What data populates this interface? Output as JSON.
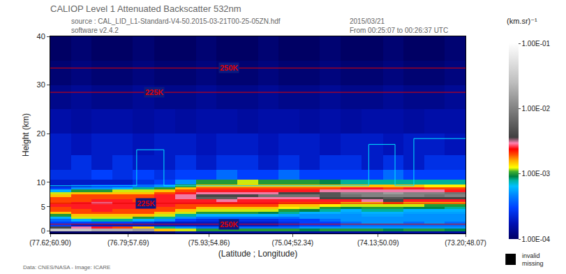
{
  "chart_data": {
    "type": "heatmap",
    "title": "CALIOP Level 1 Attenuated Backscatter 532nm",
    "source": "source : CAL_LID_L1-Standard-V4-50.2015-03-21T00-25-05ZN.hdf",
    "software": "software v2.4.2",
    "date": "2015/03/21",
    "time_span": "From 00:25:07 to 00:26:37 UTC",
    "credit": "Data: CNES/NASA - Image: ICARE",
    "xlabel": "(Latitude ; Longitude)",
    "ylabel": "Height (km)",
    "xlim": [
      77.62,
      73.2
    ],
    "xticks": [
      {
        "value": 77.62,
        "label": "(77.62;60.90)"
      },
      {
        "value": 76.79,
        "label": "(76.79;57.69)"
      },
      {
        "value": 75.93,
        "label": "(75.93;54.86)"
      },
      {
        "value": 75.04,
        "label": "(75.04;52.34)"
      },
      {
        "value": 74.13,
        "label": "(74.13;50.09)"
      },
      {
        "value": 73.2,
        "label": "(73.20;48.07)"
      }
    ],
    "ylim": [
      -0.5,
      40
    ],
    "yticks": [
      0,
      5,
      10,
      20,
      30,
      40
    ],
    "grid": false,
    "colorbar": {
      "title": "(km.sr)⁻¹",
      "log": true,
      "range": [
        0.0001,
        0.1
      ],
      "ticks": [
        {
          "value": 0.0001,
          "label": "1.00E-04"
        },
        {
          "value": 0.001,
          "label": "1.00E-03"
        },
        {
          "value": 0.01,
          "label": "1.00E-02"
        },
        {
          "value": 0.1,
          "label": "1.00E-01"
        }
      ]
    },
    "invalid_key": {
      "texts": [
        "invalid",
        "missing"
      ],
      "color": "#000000"
    },
    "cells": {
      "x": [
        77.51,
        77.29,
        77.07,
        76.85,
        76.63,
        76.4,
        76.18,
        75.96,
        75.74,
        75.52,
        75.3,
        75.08,
        74.86,
        74.64,
        74.42,
        74.19,
        73.97,
        73.75,
        73.53,
        73.31
      ],
      "y": [
        -0.25,
        0.25,
        0.75,
        1.25,
        1.75,
        2.25,
        2.75,
        3.25,
        3.75,
        4.25,
        4.75,
        5.25,
        5.75,
        6.25,
        6.75,
        7.25,
        7.75,
        8.25,
        8.75,
        9.25,
        9.75,
        11.25,
        13.75,
        17.5,
        22.5,
        27.5,
        32.5,
        37.5
      ],
      "z": [
        [
          0.0001,
          0.0001,
          0.0001,
          0.0001,
          0.0001,
          0.00012,
          0.00015,
          0.00015,
          0.00015,
          0.00015,
          0.00015,
          0.00015,
          0.00015,
          0.00015,
          0.00015,
          0.00015,
          0.00015,
          0.00015,
          0.00015,
          0.00015
        ],
        [
          0.03,
          0.03,
          0.02,
          0.02,
          0.015,
          0.0015,
          0.0012,
          0.001,
          0.001,
          0.001,
          0.001,
          0.001,
          0.0009,
          0.001,
          0.001,
          0.001,
          0.0009,
          0.001,
          0.001,
          0.0009
        ],
        [
          0.004,
          0.003,
          0.0025,
          0.002,
          0.0015,
          0.0008,
          0.0005,
          0.0004,
          0.0004,
          0.0004,
          0.0004,
          0.0004,
          0.0005,
          0.0005,
          0.0005,
          0.0005,
          0.0005,
          0.0005,
          0.0005,
          0.0005
        ],
        [
          0.0003,
          0.0002,
          0.0002,
          0.0002,
          0.0002,
          0.0002,
          0.0002,
          0.0002,
          0.0002,
          0.0002,
          0.0002,
          0.00025,
          0.0003,
          0.0003,
          0.0004,
          0.0004,
          0.0004,
          0.0004,
          0.0004,
          0.0004
        ],
        [
          0.0003,
          0.0003,
          0.0003,
          0.0003,
          0.00025,
          0.0002,
          0.0002,
          0.0002,
          0.0002,
          0.0002,
          0.0002,
          0.00025,
          0.0003,
          0.0003,
          0.0004,
          0.0005,
          0.0005,
          0.0004,
          0.0005,
          0.0004
        ],
        [
          0.0004,
          0.0006,
          0.0008,
          0.0008,
          0.0006,
          0.0005,
          0.0003,
          0.00025,
          0.00025,
          0.00025,
          0.00025,
          0.0003,
          0.0003,
          0.0004,
          0.0005,
          0.0005,
          0.0005,
          0.0005,
          0.0005,
          0.0005
        ],
        [
          0.0006,
          0.0012,
          0.0012,
          0.0012,
          0.001,
          0.0008,
          0.0005,
          0.0004,
          0.0004,
          0.0004,
          0.0004,
          0.0004,
          0.0005,
          0.0005,
          0.0005,
          0.0005,
          0.0005,
          0.0005,
          0.0005,
          0.0005
        ],
        [
          0.001,
          0.0015,
          0.0015,
          0.0015,
          0.0015,
          0.0012,
          0.0008,
          0.0006,
          0.0006,
          0.0006,
          0.0006,
          0.00055,
          0.0005,
          0.0005,
          0.0005,
          0.00055,
          0.00055,
          0.0005,
          0.0005,
          0.0005
        ],
        [
          0.0015,
          0.002,
          0.002,
          0.002,
          0.002,
          0.0015,
          0.0012,
          0.001,
          0.001,
          0.001,
          0.0009,
          0.0008,
          0.0006,
          0.0006,
          0.00055,
          0.0006,
          0.0006,
          0.00055,
          0.00055,
          0.00055
        ],
        [
          0.002,
          0.002,
          0.0025,
          0.002,
          0.002,
          0.002,
          0.0015,
          0.0012,
          0.0012,
          0.0012,
          0.0012,
          0.001,
          0.0009,
          0.0008,
          0.0006,
          0.0008,
          0.0008,
          0.0006,
          0.0006,
          0.0006
        ],
        [
          0.002,
          0.0025,
          0.0025,
          0.0025,
          0.0025,
          0.002,
          0.002,
          0.0015,
          0.0015,
          0.0015,
          0.0015,
          0.0013,
          0.0012,
          0.001,
          0.0009,
          0.001,
          0.001,
          0.0009,
          0.0009,
          0.0008
        ],
        [
          0.0025,
          0.0025,
          0.0025,
          0.0025,
          0.0025,
          0.0025,
          0.002,
          0.002,
          0.002,
          0.002,
          0.002,
          0.0015,
          0.0015,
          0.0013,
          0.0012,
          0.0012,
          0.0012,
          0.0012,
          0.001,
          0.001
        ],
        [
          0.002,
          0.0025,
          0.003,
          0.0025,
          0.0025,
          0.0025,
          0.0025,
          0.0025,
          0.0025,
          0.0025,
          0.0025,
          0.002,
          0.002,
          0.002,
          0.0015,
          0.0015,
          0.002,
          0.0015,
          0.0015,
          0.0015
        ],
        [
          0.002,
          0.002,
          0.0025,
          0.0025,
          0.002,
          0.0025,
          0.0025,
          0.0025,
          0.003,
          0.0025,
          0.0025,
          0.0025,
          0.0025,
          0.0025,
          0.0025,
          0.003,
          0.004,
          0.0025,
          0.0025,
          0.0025
        ],
        [
          0.002,
          0.002,
          0.002,
          0.002,
          0.002,
          0.0025,
          0.003,
          0.006,
          0.006,
          0.003,
          0.003,
          0.003,
          0.003,
          0.004,
          0.004,
          0.004,
          0.005,
          0.004,
          0.004,
          0.004
        ],
        [
          0.0015,
          0.002,
          0.002,
          0.002,
          0.002,
          0.0025,
          0.003,
          0.004,
          0.004,
          0.004,
          0.008,
          0.008,
          0.008,
          0.005,
          0.008,
          0.01,
          0.01,
          0.01,
          0.008,
          0.01
        ],
        [
          0.0012,
          0.0015,
          0.0015,
          0.0015,
          0.0015,
          0.002,
          0.0025,
          0.003,
          0.003,
          0.003,
          0.003,
          0.004,
          0.004,
          0.005,
          0.01,
          0.01,
          0.015,
          0.01,
          0.01,
          0.008
        ],
        [
          0.0006,
          0.001,
          0.001,
          0.0012,
          0.0012,
          0.0015,
          0.002,
          0.0025,
          0.0025,
          0.0025,
          0.0025,
          0.0025,
          0.0025,
          0.003,
          0.003,
          0.003,
          0.003,
          0.003,
          0.003,
          0.0025
        ],
        [
          0.0003,
          0.0005,
          0.0005,
          0.0006,
          0.0008,
          0.001,
          0.0015,
          0.002,
          0.002,
          0.002,
          0.002,
          0.002,
          0.002,
          0.002,
          0.0025,
          0.0025,
          0.002,
          0.0025,
          0.002,
          0.002
        ],
        [
          0.0002,
          0.00025,
          0.0003,
          0.0003,
          0.0004,
          0.0005,
          0.001,
          0.0015,
          0.0015,
          0.0015,
          0.0015,
          0.0015,
          0.0015,
          0.0015,
          0.0015,
          0.0015,
          0.0015,
          0.0015,
          0.0013,
          0.0013
        ],
        [
          0.0002,
          0.0002,
          0.0002,
          0.0002,
          0.00025,
          0.0003,
          0.0005,
          0.001,
          0.001,
          0.0012,
          0.001,
          0.001,
          0.001,
          0.0009,
          0.0008,
          0.0008,
          0.0008,
          0.0008,
          0.0008,
          0.0008
        ],
        [
          0.00025,
          0.00025,
          0.0003,
          0.00025,
          0.0003,
          0.00025,
          0.0003,
          0.0003,
          0.0004,
          0.0003,
          0.0003,
          0.0004,
          0.0003,
          0.0003,
          0.0003,
          0.0003,
          0.0004,
          0.0003,
          0.0003,
          0.0003
        ],
        [
          0.0002,
          0.00025,
          0.0002,
          0.00025,
          0.0002,
          0.0002,
          0.00025,
          0.0002,
          0.00025,
          0.00025,
          0.0002,
          0.00025,
          0.0002,
          0.00025,
          0.00025,
          0.0002,
          0.00025,
          0.0002,
          0.00025,
          0.00025
        ],
        [
          0.0002,
          0.00018,
          0.0002,
          0.0002,
          0.00018,
          0.0002,
          0.0002,
          0.00018,
          0.0002,
          0.0002,
          0.00018,
          0.0002,
          0.0002,
          0.00018,
          0.0002,
          0.0002,
          0.00018,
          0.0002,
          0.0002,
          0.00018
        ],
        [
          0.00016,
          0.00015,
          0.00016,
          0.00016,
          0.00015,
          0.00016,
          0.00015,
          0.00016,
          0.00016,
          0.00015,
          0.00016,
          0.00016,
          0.00015,
          0.00016,
          0.00015,
          0.00016,
          0.00016,
          0.00015,
          0.00016,
          0.00016
        ],
        [
          0.00013,
          0.00014,
          0.00013,
          0.00013,
          0.00014,
          0.00013,
          0.00013,
          0.00014,
          0.00013,
          0.00013,
          0.00014,
          0.00013,
          0.00013,
          0.00014,
          0.00013,
          0.00013,
          0.00014,
          0.00013,
          0.00013,
          0.00014
        ],
        [
          0.00011,
          0.00012,
          0.00011,
          0.00011,
          0.00012,
          0.00011,
          0.00011,
          0.00012,
          0.00011,
          0.00011,
          0.00012,
          0.00011,
          0.00011,
          0.00012,
          0.00011,
          0.00011,
          0.00012,
          0.00011,
          0.00011,
          0.00012
        ],
        [
          0.0001,
          0.00011,
          0.0001,
          0.0001,
          0.00011,
          0.0001,
          0.0001,
          0.00011,
          0.0001,
          0.0001,
          0.00011,
          0.0001,
          0.0001,
          0.00011,
          0.0001,
          0.0001,
          0.00011,
          0.0001,
          0.0001,
          0.00011
        ]
      ]
    },
    "isotherms": {
      "color": "#e00000",
      "lines": [
        {
          "label": "250K",
          "height": 33.5
        },
        {
          "label": "225K",
          "height": 28.5
        },
        {
          "label": "225K",
          "height": 5.7
        },
        {
          "label": "250K",
          "height": 1.4
        }
      ]
    },
    "cyan_outline": {
      "color": "#00e5ff",
      "x": [
        77.62,
        76.7,
        76.7,
        76.41,
        76.41,
        74.23,
        74.23,
        73.95,
        73.95,
        73.75,
        73.75,
        73.2
      ],
      "y": [
        9.3,
        9.3,
        16.7,
        16.7,
        9.3,
        9.3,
        17.8,
        17.8,
        9.3,
        9.3,
        19.0,
        19.0
      ]
    }
  }
}
